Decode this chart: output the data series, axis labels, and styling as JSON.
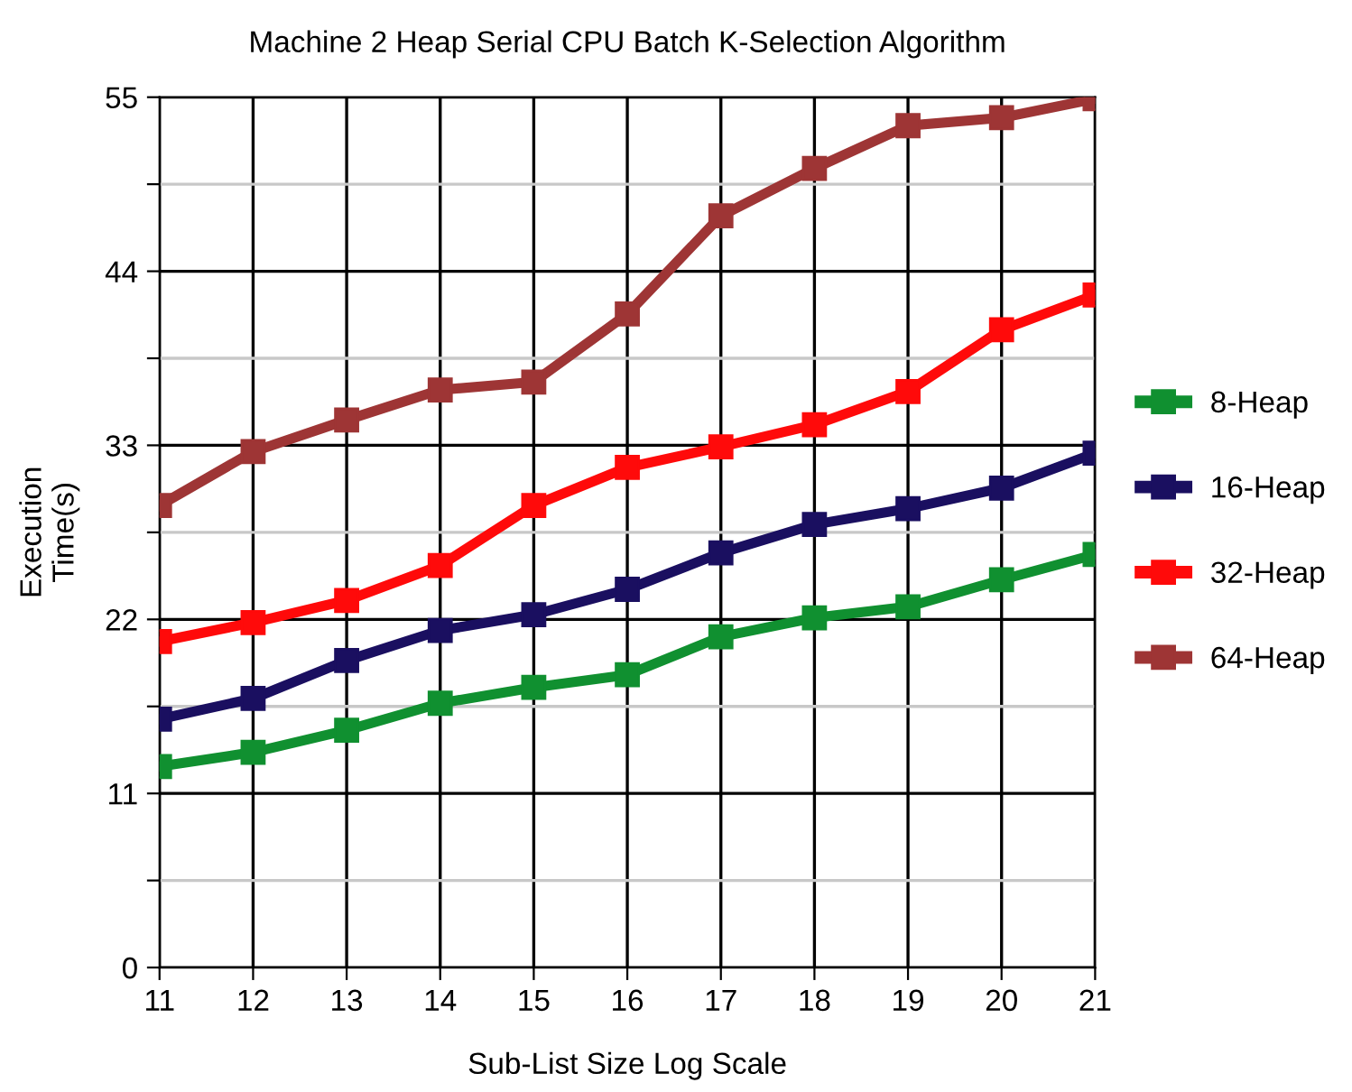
{
  "chart_data": {
    "type": "line",
    "title": "Machine 2 Heap Serial CPU Batch K-Selection Algorithm",
    "xlabel": "Sub-List Size Log Scale",
    "ylabel": "Execution\nTime(s)",
    "x": [
      11,
      12,
      13,
      14,
      15,
      16,
      17,
      18,
      19,
      20,
      21
    ],
    "series": [
      {
        "name": "8-Heap",
        "color": "#109030",
        "values": [
          12.7,
          13.6,
          15.0,
          16.7,
          17.7,
          18.5,
          20.9,
          22.1,
          22.8,
          24.5,
          26.1
        ]
      },
      {
        "name": "16-Heap",
        "color": "#1a0f60",
        "values": [
          15.7,
          17.0,
          19.4,
          21.3,
          22.3,
          23.9,
          26.2,
          28.0,
          29.0,
          30.3,
          32.5
        ]
      },
      {
        "name": "32-Heap",
        "color": "#ff0a0a",
        "values": [
          20.6,
          21.8,
          23.2,
          25.4,
          29.2,
          31.6,
          32.9,
          34.3,
          36.4,
          40.3,
          42.5
        ]
      },
      {
        "name": "64-Heap",
        "color": "#9e3535",
        "values": [
          29.2,
          32.6,
          34.6,
          36.5,
          37.0,
          41.3,
          47.5,
          50.5,
          53.2,
          53.7,
          54.9
        ]
      }
    ],
    "xlim": [
      11,
      21
    ],
    "xticks": [
      11,
      12,
      13,
      14,
      15,
      16,
      17,
      18,
      19,
      20,
      21
    ],
    "ylim": [
      0,
      55
    ],
    "yticks": [
      0,
      {
        "value": 5.5,
        "label": null
      },
      11,
      {
        "value": 16.5,
        "label": null
      },
      22,
      {
        "value": 27.5,
        "label": null
      },
      33,
      {
        "value": 38.5,
        "label": null
      },
      44,
      {
        "value": 49.5,
        "label": null
      },
      55
    ],
    "grid": true,
    "legend": "right",
    "marker": "square",
    "line_style": "solid"
  }
}
